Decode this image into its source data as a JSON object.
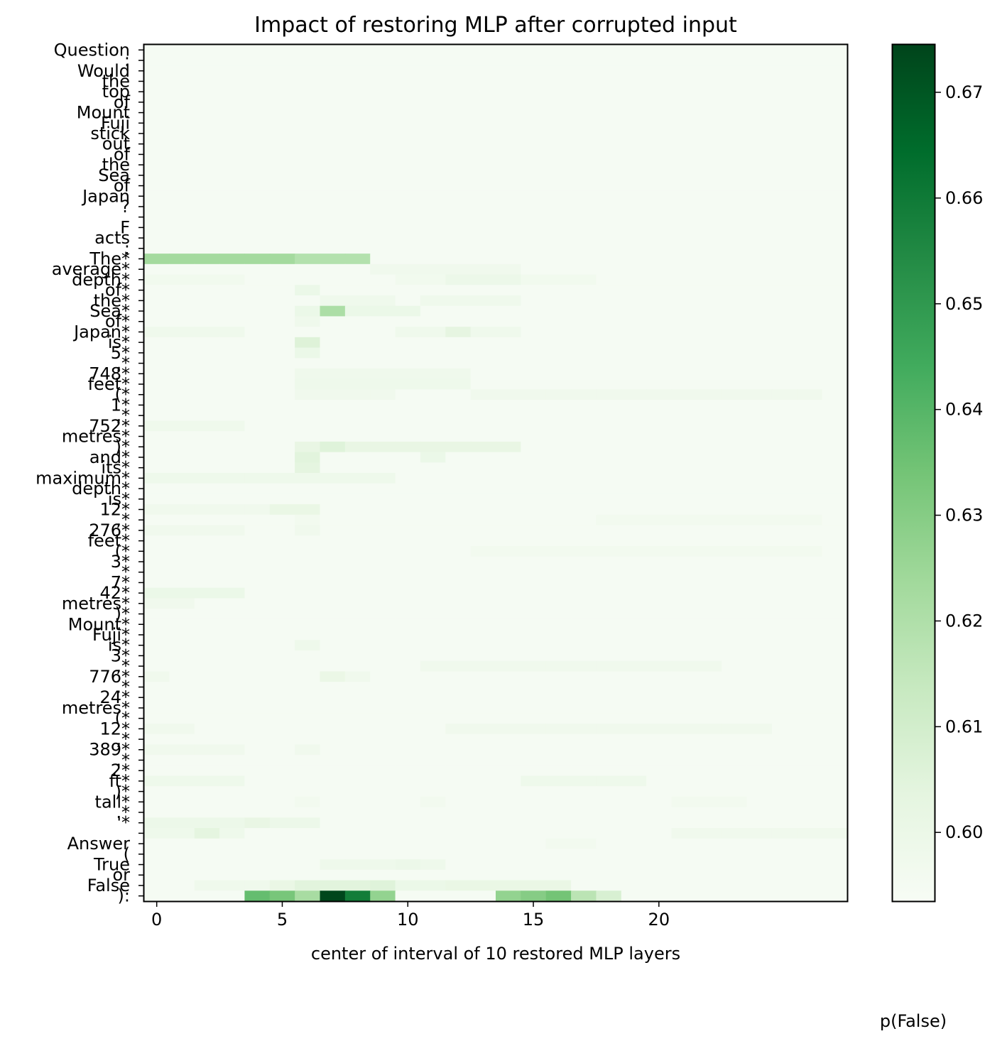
{
  "chart_data": {
    "type": "heatmap",
    "title": "Impact of restoring MLP after corrupted input",
    "xlabel": "center of interval of 10 restored MLP layers",
    "ylabel": "",
    "x_ticks": [
      0,
      5,
      10,
      15,
      20
    ],
    "n_cols": 28,
    "tokens": [
      "Question",
      ":",
      "Would",
      "the",
      "top",
      "of",
      "Mount",
      "Fuji",
      "stick",
      "out",
      "of",
      "the",
      "Sea",
      "of",
      "Japan",
      "?",
      "",
      "F",
      "acts",
      ":",
      "The*",
      "average*",
      "depth*",
      "of*",
      "the*",
      "Sea*",
      "of*",
      "Japan*",
      "is*",
      "5*",
      ",*",
      "748*",
      "feet*",
      "(*",
      "1*",
      ",*",
      "752*",
      "metres*",
      ")*",
      "and*",
      "its*",
      "maximum*",
      "depth*",
      "is*",
      "12*",
      ",*",
      "276*",
      "feet*",
      "(*",
      "3*",
      ",*",
      "7*",
      "42*",
      "metres*",
      ")*",
      "Mount*",
      "Fuji*",
      "is*",
      "3*",
      ",*",
      "776*",
      ".*",
      "24*",
      "metres*",
      "(*",
      "12*",
      ",*",
      "389*",
      ".*",
      "2*",
      "ft*",
      ")*",
      "tall*",
      ".*",
      "'*",
      "",
      "Answer",
      "(",
      "True",
      "or",
      "False",
      "):"
    ],
    "colorbar": {
      "label": "p(False)",
      "min": 0.5935,
      "max": 0.6745,
      "ticks": [
        0.6,
        0.61,
        0.62,
        0.63,
        0.64,
        0.65,
        0.66,
        0.67
      ],
      "tick_labels": [
        "0.60",
        "0.61",
        "0.62",
        "0.63",
        "0.64",
        "0.65",
        "0.66",
        "0.67"
      ],
      "colormap": "Greens"
    },
    "baseline": 0.5945,
    "cells": [
      {
        "row": 20,
        "cols": [
          0,
          1,
          2,
          3,
          4,
          5
        ],
        "value": 0.623
      },
      {
        "row": 20,
        "cols": [
          6,
          7,
          8
        ],
        "value": 0.619
      },
      {
        "row": 21,
        "cols": [
          9,
          10,
          11,
          12,
          13,
          14
        ],
        "value": 0.5975
      },
      {
        "row": 22,
        "cols": [
          0,
          1,
          2,
          3,
          10,
          11,
          12,
          13,
          14,
          15,
          16,
          17
        ],
        "value": 0.597
      },
      {
        "row": 22,
        "cols": [
          12,
          13,
          14
        ],
        "value": 0.5995
      },
      {
        "row": 23,
        "cols": [
          6
        ],
        "value": 0.6
      },
      {
        "row": 24,
        "cols": [
          7,
          8,
          9,
          11,
          12,
          13,
          14
        ],
        "value": 0.598
      },
      {
        "row": 25,
        "cols": [
          7
        ],
        "value": 0.621
      },
      {
        "row": 25,
        "cols": [
          6,
          8,
          9,
          10
        ],
        "value": 0.6
      },
      {
        "row": 26,
        "cols": [
          6
        ],
        "value": 0.598
      },
      {
        "row": 27,
        "cols": [
          0,
          1,
          2,
          3,
          10,
          11,
          12,
          13,
          14
        ],
        "value": 0.598
      },
      {
        "row": 27,
        "cols": [
          12
        ],
        "value": 0.603
      },
      {
        "row": 28,
        "cols": [
          6
        ],
        "value": 0.606
      },
      {
        "row": 29,
        "cols": [
          6
        ],
        "value": 0.6
      },
      {
        "row": 31,
        "cols": [
          6,
          7,
          8,
          9,
          10,
          11,
          12
        ],
        "value": 0.598
      },
      {
        "row": 32,
        "cols": [
          6,
          7,
          8,
          9,
          10,
          11,
          12
        ],
        "value": 0.5985
      },
      {
        "row": 33,
        "cols": [
          6,
          7,
          8,
          9,
          13,
          14,
          15,
          16,
          17,
          18,
          19,
          20,
          21,
          22,
          23,
          24,
          25,
          26
        ],
        "value": 0.5975
      },
      {
        "row": 36,
        "cols": [
          0,
          1,
          2,
          3
        ],
        "value": 0.598
      },
      {
        "row": 38,
        "cols": [
          6,
          8,
          9,
          10,
          11,
          12,
          13,
          14
        ],
        "value": 0.6015
      },
      {
        "row": 38,
        "cols": [
          7
        ],
        "value": 0.6055
      },
      {
        "row": 39,
        "cols": [
          6
        ],
        "value": 0.6045
      },
      {
        "row": 39,
        "cols": [
          11
        ],
        "value": 0.6
      },
      {
        "row": 40,
        "cols": [
          6
        ],
        "value": 0.6035
      },
      {
        "row": 41,
        "cols": [
          0,
          1,
          2,
          3,
          4,
          5,
          6,
          7,
          8,
          9
        ],
        "value": 0.5985
      },
      {
        "row": 44,
        "cols": [
          0,
          1,
          2,
          3,
          4
        ],
        "value": 0.5975
      },
      {
        "row": 44,
        "cols": [
          5,
          6
        ],
        "value": 0.601
      },
      {
        "row": 45,
        "cols": [
          6,
          18,
          19,
          20,
          21,
          22,
          23,
          24,
          25,
          26
        ],
        "value": 0.5965
      },
      {
        "row": 46,
        "cols": [
          0,
          1,
          2,
          3,
          6
        ],
        "value": 0.5975
      },
      {
        "row": 48,
        "cols": [
          13,
          14,
          15,
          16,
          17,
          18,
          19,
          20,
          21,
          22,
          23,
          24,
          25,
          26
        ],
        "value": 0.5965
      },
      {
        "row": 52,
        "cols": [
          0,
          1,
          2,
          3
        ],
        "value": 0.6
      },
      {
        "row": 53,
        "cols": [
          0,
          1
        ],
        "value": 0.5975
      },
      {
        "row": 57,
        "cols": [
          6
        ],
        "value": 0.5985
      },
      {
        "row": 59,
        "cols": [
          11,
          12,
          13,
          14,
          15,
          16,
          17,
          18,
          19,
          20,
          21,
          22
        ],
        "value": 0.5975
      },
      {
        "row": 60,
        "cols": [
          7
        ],
        "value": 0.6005
      },
      {
        "row": 60,
        "cols": [
          0,
          8
        ],
        "value": 0.5975
      },
      {
        "row": 65,
        "cols": [
          0,
          1,
          12,
          13,
          14,
          15,
          16,
          17,
          18,
          19,
          20,
          21,
          22,
          23,
          24
        ],
        "value": 0.5975
      },
      {
        "row": 67,
        "cols": [
          0,
          1,
          2,
          3,
          6
        ],
        "value": 0.5975
      },
      {
        "row": 70,
        "cols": [
          0,
          1,
          2,
          3,
          15,
          16,
          17,
          18,
          19
        ],
        "value": 0.5985
      },
      {
        "row": 72,
        "cols": [
          6,
          11,
          21,
          22,
          23
        ],
        "value": 0.5965
      },
      {
        "row": 74,
        "cols": [
          0,
          1,
          2,
          3,
          4,
          5,
          6
        ],
        "value": 0.5995
      },
      {
        "row": 74,
        "cols": [
          4
        ],
        "value": 0.6015
      },
      {
        "row": 75,
        "cols": [
          0,
          1,
          3
        ],
        "value": 0.5985
      },
      {
        "row": 75,
        "cols": [
          2
        ],
        "value": 0.6035
      },
      {
        "row": 75,
        "cols": [
          21,
          22,
          23,
          24,
          25,
          26,
          27
        ],
        "value": 0.5975
      },
      {
        "row": 76,
        "cols": [
          16,
          17
        ],
        "value": 0.5965
      },
      {
        "row": 78,
        "cols": [
          7,
          8,
          9,
          10,
          11
        ],
        "value": 0.5985
      },
      {
        "row": 78,
        "cols": [
          10
        ],
        "value": 0.5995
      },
      {
        "row": 80,
        "cols": [
          2,
          3,
          4
        ],
        "value": 0.598
      },
      {
        "row": 80,
        "cols": [
          5
        ],
        "value": 0.601
      },
      {
        "row": 80,
        "cols": [
          6,
          7,
          8
        ],
        "value": 0.6045
      },
      {
        "row": 80,
        "cols": [
          9
        ],
        "value": 0.6055
      },
      {
        "row": 80,
        "cols": [
          10,
          11
        ],
        "value": 0.6
      },
      {
        "row": 80,
        "cols": [
          12,
          13,
          14,
          15,
          16
        ],
        "value": 0.601
      },
      {
        "row": 81,
        "cols": [
          4
        ],
        "value": 0.637
      },
      {
        "row": 81,
        "cols": [
          5
        ],
        "value": 0.633
      },
      {
        "row": 81,
        "cols": [
          6
        ],
        "value": 0.622
      },
      {
        "row": 81,
        "cols": [
          7
        ],
        "value": 0.674
      },
      {
        "row": 81,
        "cols": [
          8
        ],
        "value": 0.659
      },
      {
        "row": 81,
        "cols": [
          9
        ],
        "value": 0.627
      },
      {
        "row": 81,
        "cols": [
          14
        ],
        "value": 0.627
      },
      {
        "row": 81,
        "cols": [
          15
        ],
        "value": 0.63
      },
      {
        "row": 81,
        "cols": [
          16
        ],
        "value": 0.634
      },
      {
        "row": 81,
        "cols": [
          17
        ],
        "value": 0.617
      },
      {
        "row": 81,
        "cols": [
          18
        ],
        "value": 0.608
      }
    ]
  }
}
